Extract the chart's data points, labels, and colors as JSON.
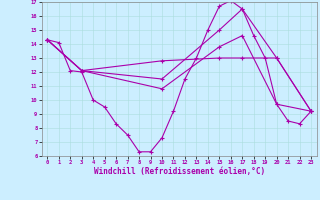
{
  "xlabel": "Windchill (Refroidissement éolien,°C)",
  "background_color": "#cceeff",
  "grid_color": "#aadddd",
  "line_color": "#aa00aa",
  "xlim": [
    -0.5,
    23.5
  ],
  "ylim": [
    6,
    17
  ],
  "xticks": [
    0,
    1,
    2,
    3,
    4,
    5,
    6,
    7,
    8,
    9,
    10,
    11,
    12,
    13,
    14,
    15,
    16,
    17,
    18,
    19,
    20,
    21,
    22,
    23
  ],
  "yticks": [
    6,
    7,
    8,
    9,
    10,
    11,
    12,
    13,
    14,
    15,
    16,
    17
  ],
  "line1_x": [
    0,
    1,
    2,
    3,
    4,
    5,
    6,
    7,
    8,
    9,
    10,
    11,
    12,
    13,
    14,
    15,
    16,
    17,
    18,
    19,
    20,
    21,
    22,
    23
  ],
  "line1_y": [
    14.3,
    14.1,
    12.1,
    12.0,
    10.0,
    9.5,
    8.3,
    7.5,
    6.3,
    6.3,
    7.3,
    9.2,
    11.5,
    13.0,
    15.0,
    16.7,
    17.1,
    16.5,
    14.6,
    13.0,
    9.7,
    8.5,
    8.3,
    9.2
  ],
  "line2_x": [
    0,
    3,
    10,
    15,
    17,
    20,
    23
  ],
  "line2_y": [
    14.3,
    12.1,
    10.8,
    13.8,
    14.6,
    9.7,
    9.2
  ],
  "line3_x": [
    0,
    3,
    10,
    15,
    17,
    20,
    23
  ],
  "line3_y": [
    14.3,
    12.1,
    11.5,
    15.0,
    16.5,
    13.0,
    9.2
  ],
  "line4_x": [
    0,
    3,
    10,
    15,
    17,
    20,
    23
  ],
  "line4_y": [
    14.3,
    12.1,
    12.8,
    13.0,
    13.0,
    13.0,
    9.2
  ],
  "figsize": [
    3.2,
    2.0
  ],
  "dpi": 100
}
